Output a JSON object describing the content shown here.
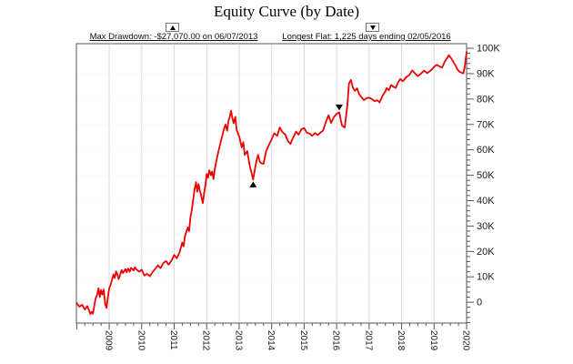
{
  "header": {
    "title": "Equity Curve (by Date)"
  },
  "annotations": {
    "drawdown": {
      "symbol": "up-triangle",
      "label": "Max Drawdown: -$27,070.00 on 06/07/2013"
    },
    "flat": {
      "symbol": "down-triangle",
      "label": "Longest Flat: 1,225 days ending 02/05/2016"
    }
  },
  "colors": {
    "curve": "#ee0000",
    "border": "#555555",
    "grid_vertical": "#d9d9d9",
    "grid_horizontal": "#efefef",
    "tick": "#555555",
    "text": "#1a1a1a",
    "marker": "#000000",
    "background": "#ffffff"
  },
  "chart_data": {
    "type": "line",
    "title": "Equity Curve (by Date)",
    "xlabel": "",
    "ylabel": "",
    "unit": "K",
    "xlim": [
      2007.99,
      2020.0
    ],
    "ylim": [
      -8.2,
      101.8
    ],
    "grid": {
      "vertical": true,
      "horizontal": "faint"
    },
    "legend": "none",
    "x_ticks": [
      {
        "label": "2009",
        "value": 2009
      },
      {
        "label": "2010",
        "value": 2010
      },
      {
        "label": "2011",
        "value": 2011
      },
      {
        "label": "2012",
        "value": 2012
      },
      {
        "label": "2013",
        "value": 2013
      },
      {
        "label": "2014",
        "value": 2014
      },
      {
        "label": "2015",
        "value": 2015
      },
      {
        "label": "2016",
        "value": 2016
      },
      {
        "label": "2017",
        "value": 2017
      },
      {
        "label": "2018",
        "value": 2018
      },
      {
        "label": "2019",
        "value": 2019
      },
      {
        "label": "2020",
        "value": 2020
      }
    ],
    "y_ticks": [
      {
        "label": "0",
        "value": 0
      },
      {
        "label": "10K",
        "value": 10
      },
      {
        "label": "20K",
        "value": 20
      },
      {
        "label": "30K",
        "value": 30
      },
      {
        "label": "40K",
        "value": 40
      },
      {
        "label": "50K",
        "value": 50
      },
      {
        "label": "60K",
        "value": 60
      },
      {
        "label": "70K",
        "value": 70
      },
      {
        "label": "80K",
        "value": 80
      },
      {
        "label": "90K",
        "value": 90
      },
      {
        "label": "100K",
        "value": 100
      }
    ],
    "y_minor_step": 2,
    "x_minor_step": 0.25,
    "markers": [
      {
        "symbol": "triangle-up",
        "x": 2013.43,
        "y": 48.3,
        "position": "below",
        "meaning": "max-drawdown-point"
      },
      {
        "symbol": "triangle-down",
        "x": 2016.08,
        "y": 74.8,
        "position": "above",
        "meaning": "longest-flat-end-point"
      }
    ],
    "series": [
      {
        "name": "Equity",
        "color": "#ee0000",
        "points": [
          [
            2008.0,
            -0.3
          ],
          [
            2008.08,
            -1.8
          ],
          [
            2008.17,
            -1.0
          ],
          [
            2008.25,
            -2.9
          ],
          [
            2008.33,
            -1.5
          ],
          [
            2008.42,
            -4.7
          ],
          [
            2008.46,
            -3.8
          ],
          [
            2008.5,
            -4.5
          ],
          [
            2008.58,
            1.5
          ],
          [
            2008.63,
            3.0
          ],
          [
            2008.67,
            5.5
          ],
          [
            2008.71,
            2.0
          ],
          [
            2008.75,
            4.8
          ],
          [
            2008.79,
            3.0
          ],
          [
            2008.83,
            5.0
          ],
          [
            2008.88,
            -1.0
          ],
          [
            2008.92,
            -2.2
          ],
          [
            2008.96,
            2.0
          ],
          [
            2009.0,
            5.5
          ],
          [
            2009.04,
            6.7
          ],
          [
            2009.08,
            8.5
          ],
          [
            2009.13,
            10.9
          ],
          [
            2009.17,
            9.5
          ],
          [
            2009.21,
            12.1
          ],
          [
            2009.25,
            11.0
          ],
          [
            2009.29,
            9.1
          ],
          [
            2009.33,
            10.5
          ],
          [
            2009.38,
            12.7
          ],
          [
            2009.42,
            11.5
          ],
          [
            2009.5,
            13.0
          ],
          [
            2009.54,
            11.8
          ],
          [
            2009.58,
            13.3
          ],
          [
            2009.63,
            12.0
          ],
          [
            2009.67,
            13.5
          ],
          [
            2009.75,
            12.5
          ],
          [
            2009.79,
            13.8
          ],
          [
            2009.83,
            13.0
          ],
          [
            2009.92,
            12.0
          ],
          [
            2010.0,
            12.8
          ],
          [
            2010.08,
            10.5
          ],
          [
            2010.17,
            11.2
          ],
          [
            2010.25,
            10.2
          ],
          [
            2010.33,
            11.8
          ],
          [
            2010.42,
            13.2
          ],
          [
            2010.5,
            14.5
          ],
          [
            2010.58,
            13.4
          ],
          [
            2010.67,
            15.5
          ],
          [
            2010.75,
            16.2
          ],
          [
            2010.83,
            14.8
          ],
          [
            2010.92,
            16.5
          ],
          [
            2011.0,
            18.6
          ],
          [
            2011.08,
            17.3
          ],
          [
            2011.17,
            19.8
          ],
          [
            2011.25,
            23.5
          ],
          [
            2011.29,
            22.0
          ],
          [
            2011.33,
            26.0
          ],
          [
            2011.42,
            29.5
          ],
          [
            2011.46,
            28.0
          ],
          [
            2011.5,
            33.5
          ],
          [
            2011.54,
            36.0
          ],
          [
            2011.58,
            40.0
          ],
          [
            2011.63,
            44.5
          ],
          [
            2011.67,
            47.3
          ],
          [
            2011.71,
            43.5
          ],
          [
            2011.75,
            46.5
          ],
          [
            2011.79,
            44.0
          ],
          [
            2011.83,
            42.0
          ],
          [
            2011.88,
            39.0
          ],
          [
            2011.92,
            43.0
          ],
          [
            2011.96,
            46.0
          ],
          [
            2012.0,
            50.5
          ],
          [
            2012.04,
            49.0
          ],
          [
            2012.08,
            52.0
          ],
          [
            2012.13,
            50.0
          ],
          [
            2012.17,
            51.5
          ],
          [
            2012.21,
            48.5
          ],
          [
            2012.25,
            52.5
          ],
          [
            2012.33,
            57.5
          ],
          [
            2012.42,
            62.5
          ],
          [
            2012.5,
            66.5
          ],
          [
            2012.54,
            68.5
          ],
          [
            2012.58,
            70.0
          ],
          [
            2012.63,
            67.5
          ],
          [
            2012.67,
            71.5
          ],
          [
            2012.71,
            73.0
          ],
          [
            2012.75,
            75.4
          ],
          [
            2012.79,
            72.5
          ],
          [
            2012.83,
            70.5
          ],
          [
            2012.88,
            73.0
          ],
          [
            2012.92,
            68.0
          ],
          [
            2013.0,
            65.2
          ],
          [
            2013.08,
            61.0
          ],
          [
            2013.13,
            63.0
          ],
          [
            2013.17,
            58.0
          ],
          [
            2013.25,
            59.5
          ],
          [
            2013.33,
            53.5
          ],
          [
            2013.38,
            51.0
          ],
          [
            2013.43,
            48.3
          ],
          [
            2013.5,
            53.5
          ],
          [
            2013.54,
            56.0
          ],
          [
            2013.58,
            58.0
          ],
          [
            2013.63,
            55.5
          ],
          [
            2013.67,
            54.8
          ],
          [
            2013.75,
            54.5
          ],
          [
            2013.79,
            57.0
          ],
          [
            2013.83,
            59.5
          ],
          [
            2013.92,
            62.0
          ],
          [
            2014.0,
            64.2
          ],
          [
            2014.08,
            66.5
          ],
          [
            2014.17,
            65.5
          ],
          [
            2014.25,
            68.8
          ],
          [
            2014.33,
            67.0
          ],
          [
            2014.42,
            66.0
          ],
          [
            2014.5,
            63.5
          ],
          [
            2014.58,
            62.3
          ],
          [
            2014.63,
            64.0
          ],
          [
            2014.67,
            65.0
          ],
          [
            2014.75,
            67.2
          ],
          [
            2014.83,
            66.0
          ],
          [
            2014.92,
            68.2
          ],
          [
            2015.0,
            68.5
          ],
          [
            2015.08,
            66.8
          ],
          [
            2015.17,
            66.4
          ],
          [
            2015.25,
            65.5
          ],
          [
            2015.33,
            66.6
          ],
          [
            2015.42,
            65.8
          ],
          [
            2015.5,
            66.8
          ],
          [
            2015.58,
            67.5
          ],
          [
            2015.67,
            71.0
          ],
          [
            2015.75,
            73.6
          ],
          [
            2015.83,
            70.6
          ],
          [
            2015.92,
            73.0
          ],
          [
            2016.0,
            74.2
          ],
          [
            2016.08,
            74.8
          ],
          [
            2016.13,
            71.5
          ],
          [
            2016.17,
            69.5
          ],
          [
            2016.25,
            68.8
          ],
          [
            2016.33,
            77.5
          ],
          [
            2016.38,
            86.1
          ],
          [
            2016.44,
            87.5
          ],
          [
            2016.5,
            84.5
          ],
          [
            2016.56,
            83.2
          ],
          [
            2016.63,
            84.2
          ],
          [
            2016.69,
            82.0
          ],
          [
            2016.75,
            81.0
          ],
          [
            2016.84,
            79.6
          ],
          [
            2016.92,
            80.3
          ],
          [
            2017.0,
            80.6
          ],
          [
            2017.08,
            80.0
          ],
          [
            2017.17,
            79.2
          ],
          [
            2017.25,
            79.5
          ],
          [
            2017.32,
            78.7
          ],
          [
            2017.42,
            81.5
          ],
          [
            2017.5,
            83.0
          ],
          [
            2017.54,
            84.3
          ],
          [
            2017.61,
            83.5
          ],
          [
            2017.68,
            85.5
          ],
          [
            2017.75,
            84.8
          ],
          [
            2017.82,
            84.4
          ],
          [
            2017.89,
            86.5
          ],
          [
            2017.96,
            87.9
          ],
          [
            2018.04,
            87.0
          ],
          [
            2018.13,
            88.5
          ],
          [
            2018.24,
            89.5
          ],
          [
            2018.33,
            91.3
          ],
          [
            2018.42,
            90.0
          ],
          [
            2018.5,
            89.0
          ],
          [
            2018.58,
            89.8
          ],
          [
            2018.69,
            91.2
          ],
          [
            2018.79,
            90.2
          ],
          [
            2018.92,
            91.5
          ],
          [
            2019.0,
            92.7
          ],
          [
            2019.08,
            93.5
          ],
          [
            2019.17,
            92.8
          ],
          [
            2019.25,
            92.4
          ],
          [
            2019.33,
            94.8
          ],
          [
            2019.42,
            96.5
          ],
          [
            2019.45,
            97.3
          ],
          [
            2019.53,
            96.0
          ],
          [
            2019.61,
            94.2
          ],
          [
            2019.67,
            93.0
          ],
          [
            2019.72,
            91.6
          ],
          [
            2019.78,
            90.8
          ],
          [
            2019.84,
            90.4
          ],
          [
            2019.9,
            90.1
          ],
          [
            2019.94,
            92.5
          ],
          [
            2020.0,
            98.5
          ]
        ]
      }
    ]
  }
}
